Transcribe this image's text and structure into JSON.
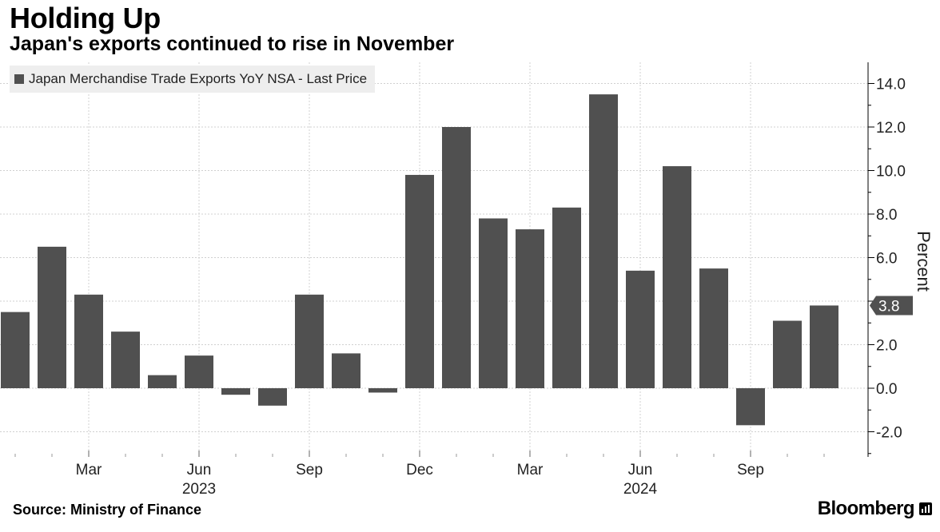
{
  "header": {
    "title": "Holding Up",
    "subtitle": "Japan's exports continued to rise in November"
  },
  "footer": {
    "source": "Source: Ministry of Finance",
    "brand": "Bloomberg"
  },
  "colors": {
    "bar": "#505050",
    "grid": "#d0d0d0",
    "axis": "#000000",
    "label_bg": "#505050",
    "legend_bg": "#eeeeee"
  },
  "chart_data": {
    "type": "bar",
    "title": "Holding Up",
    "subtitle": "Japan's exports continued to rise in November",
    "legend": [
      "Japan Merchandise Trade Exports YoY NSA - Last Price"
    ],
    "legend_position": "top-left",
    "ylabel": "Percent",
    "xlabel": "",
    "ylim": [
      -3,
      15
    ],
    "y_ticks": [
      -2,
      0,
      2,
      4,
      6,
      8,
      10,
      12,
      14
    ],
    "y_tick_labels": [
      "-2.0",
      "0.0",
      "2.0",
      "4.0",
      "6.0",
      "8.0",
      "10.0",
      "12.0",
      "14.0"
    ],
    "y_axis_side": "right",
    "grid": true,
    "categories": [
      "Jan 2023",
      "Feb 2023",
      "Mar 2023",
      "Apr 2023",
      "May 2023",
      "Jun 2023",
      "Jul 2023",
      "Aug 2023",
      "Sep 2023",
      "Oct 2023",
      "Nov 2023",
      "Dec 2023",
      "Jan 2024",
      "Feb 2024",
      "Mar 2024",
      "Apr 2024",
      "May 2024",
      "Jun 2024",
      "Jul 2024",
      "Aug 2024",
      "Sep 2024",
      "Oct 2024",
      "Nov 2024"
    ],
    "series": [
      {
        "name": "Japan Merchandise Trade Exports YoY NSA - Last Price",
        "values": [
          3.5,
          6.5,
          4.3,
          2.6,
          0.6,
          1.5,
          -0.3,
          -0.8,
          4.3,
          1.6,
          -0.2,
          9.8,
          12.0,
          7.8,
          7.3,
          8.3,
          13.5,
          5.4,
          10.2,
          5.5,
          -1.7,
          3.1,
          3.8
        ]
      }
    ],
    "x_tick_labels": [
      {
        "index": 2,
        "label": "Mar"
      },
      {
        "index": 5,
        "label": "Jun"
      },
      {
        "index": 8,
        "label": "Sep"
      },
      {
        "index": 11,
        "label": "Dec"
      },
      {
        "index": 14,
        "label": "Mar"
      },
      {
        "index": 17,
        "label": "Jun"
      },
      {
        "index": 20,
        "label": "Sep"
      }
    ],
    "year_labels": [
      {
        "index": 5,
        "label": "2023"
      },
      {
        "index": 17,
        "label": "2024"
      }
    ],
    "last_value_label": "3.8"
  }
}
